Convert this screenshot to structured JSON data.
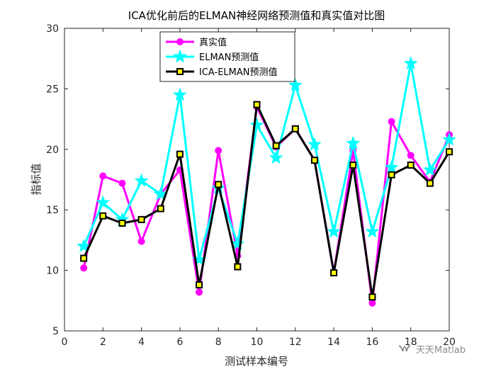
{
  "chart_data": {
    "type": "line",
    "title": "ICA优化前后的ELMAN神经网络预测值和真实值对比图",
    "xlabel": "测试样本编号",
    "ylabel": "指标值",
    "xlim": [
      0,
      20
    ],
    "ylim": [
      5,
      30
    ],
    "xticks": [
      0,
      2,
      4,
      6,
      8,
      10,
      12,
      14,
      16,
      18,
      20
    ],
    "yticks": [
      5,
      10,
      15,
      20,
      25,
      30
    ],
    "grid": false,
    "legend_position": "top-center",
    "x": [
      1,
      2,
      3,
      4,
      5,
      6,
      7,
      8,
      9,
      10,
      11,
      12,
      13,
      14,
      15,
      16,
      17,
      18,
      19,
      20
    ],
    "series": [
      {
        "name": "真实值",
        "color": "#ff00ff",
        "marker": "circle",
        "values": [
          10.2,
          17.8,
          17.2,
          12.4,
          16.3,
          18.3,
          8.2,
          19.9,
          11.2,
          23.5,
          20.2,
          21.7,
          19.1,
          9.8,
          19.9,
          7.3,
          22.3,
          19.5,
          17.3,
          21.2
        ]
      },
      {
        "name": "ELMAN预测值",
        "color": "#00ffff",
        "marker": "star",
        "values": [
          12.0,
          15.6,
          14.2,
          17.4,
          16.3,
          24.5,
          10.9,
          16.8,
          12.2,
          22.0,
          19.3,
          25.3,
          20.4,
          13.2,
          20.5,
          13.2,
          18.5,
          27.1,
          18.3,
          20.8
        ]
      },
      {
        "name": "ICA-ELMAN预测值",
        "color": "#000000",
        "marker": "square",
        "marker_fill": "#ffff00",
        "values": [
          11.0,
          14.5,
          13.9,
          14.2,
          15.1,
          19.6,
          8.8,
          17.1,
          10.3,
          23.7,
          20.3,
          21.7,
          19.1,
          9.8,
          18.7,
          7.8,
          17.9,
          18.7,
          17.2,
          19.8
        ]
      }
    ]
  },
  "watermark": {
    "text": "天天Matlab",
    "icon": "wechat-channel-icon"
  }
}
